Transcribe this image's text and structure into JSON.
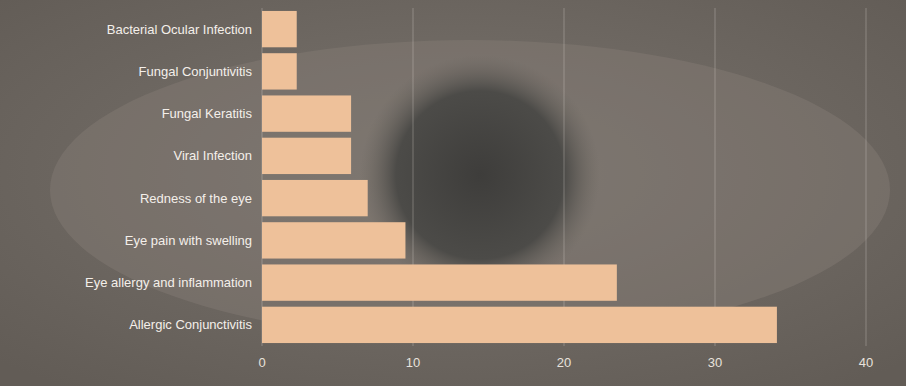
{
  "chart_data": {
    "type": "bar",
    "orientation": "horizontal",
    "categories": [
      "Bacterial Ocular Infection",
      "Fungal Conjuntivitis",
      "Fungal Keratitis",
      "Viral Infection",
      "Redness of the eye",
      "Eye pain with swelling",
      "Eye allergy and inflammation",
      "Allergic Conjunctivitis"
    ],
    "values": [
      2.3,
      2.3,
      5.9,
      5.9,
      7.0,
      9.5,
      23.5,
      34.1
    ],
    "color": "#eec19a",
    "xlim": [
      0,
      40
    ],
    "xticks": [
      0,
      10,
      20,
      30,
      40
    ],
    "grid": true
  }
}
